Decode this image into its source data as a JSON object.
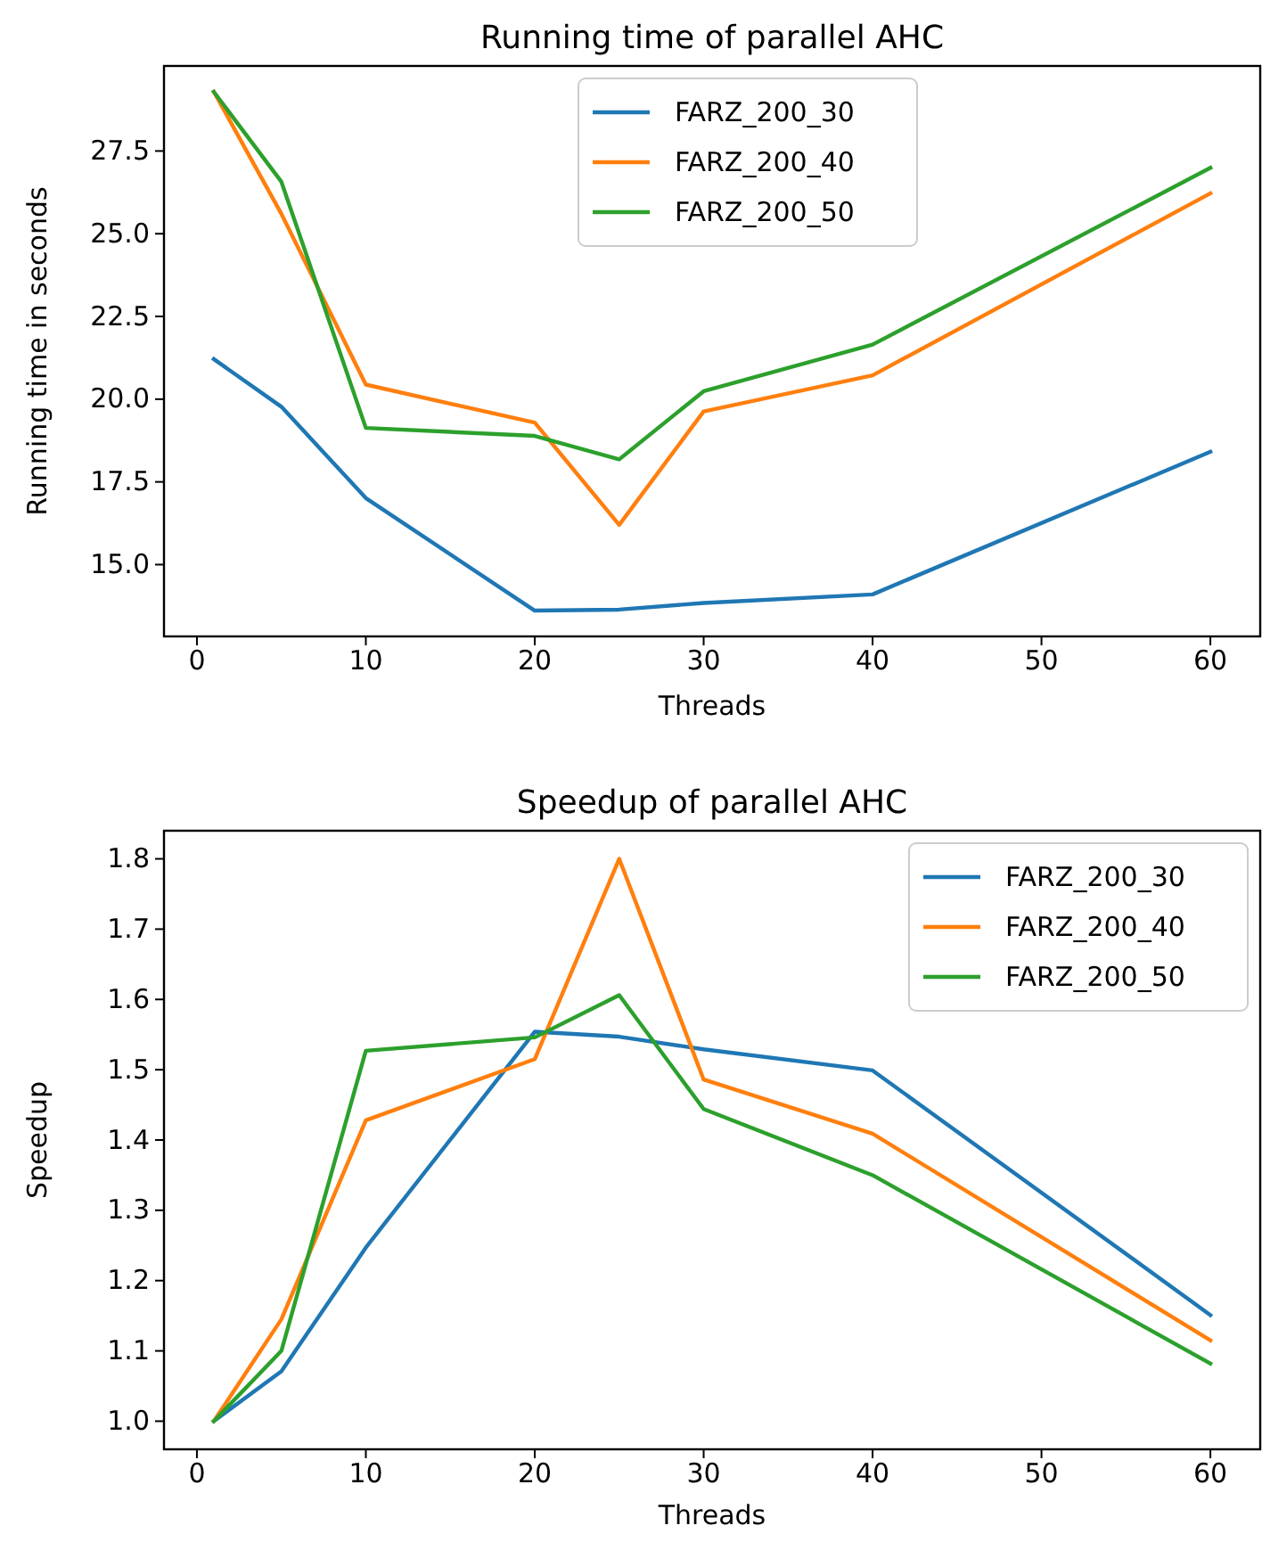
{
  "chart_data": [
    {
      "type": "line",
      "title": "Running time of parallel AHC",
      "xlabel": "Threads",
      "ylabel": "Running time in seconds",
      "x": [
        1,
        5,
        10,
        20,
        25,
        30,
        40,
        60
      ],
      "series": [
        {
          "name": "FARZ_200_30",
          "color": "#1f77b4",
          "values": [
            21.21,
            19.77,
            17.01,
            13.61,
            13.64,
            13.84,
            14.1,
            18.41
          ]
        },
        {
          "name": "FARZ_200_40",
          "color": "#ff7f0e",
          "values": [
            29.29,
            25.6,
            20.44,
            19.29,
            16.2,
            19.63,
            20.72,
            26.22
          ]
        },
        {
          "name": "FARZ_200_50",
          "color": "#2ca02c",
          "values": [
            29.29,
            26.57,
            19.13,
            18.89,
            18.18,
            20.24,
            21.65,
            26.99
          ]
        }
      ],
      "xlim": [
        -1.95,
        62.95
      ],
      "xticks": [
        0,
        10,
        20,
        30,
        40,
        50,
        60
      ],
      "ylim": [
        12.83,
        30.07
      ],
      "yticks": [
        {
          "value": 15,
          "label": "15.0"
        },
        17.5,
        {
          "value": 20,
          "label": "20.0"
        },
        22.5,
        {
          "value": 25,
          "label": "25.0"
        },
        27.5
      ],
      "legend": "top",
      "grid": false
    },
    {
      "type": "line",
      "title": "Speedup of parallel AHC",
      "xlabel": "Threads",
      "ylabel": "Speedup",
      "x": [
        1,
        5,
        10,
        20,
        25,
        30,
        40,
        60
      ],
      "series": [
        {
          "name": "FARZ_200_30",
          "color": "#1f77b4",
          "values": [
            1.0,
            1.071,
            1.247,
            1.554,
            1.547,
            1.529,
            1.499,
            1.151
          ]
        },
        {
          "name": "FARZ_200_40",
          "color": "#ff7f0e",
          "values": [
            1.0,
            1.145,
            1.428,
            1.515,
            1.8,
            1.486,
            1.409,
            1.115
          ]
        },
        {
          "name": "FARZ_200_50",
          "color": "#2ca02c",
          "values": [
            1.0,
            1.1,
            1.527,
            1.546,
            1.606,
            1.444,
            1.35,
            1.082
          ]
        }
      ],
      "xlim": [
        -1.95,
        62.95
      ],
      "xticks": [
        0,
        10,
        20,
        30,
        40,
        50,
        60
      ],
      "ylim": [
        0.96,
        1.84
      ],
      "yticks": [
        {
          "value": 1,
          "label": "1.0"
        },
        1.1,
        1.2,
        1.3,
        1.4,
        1.5,
        1.6,
        1.7,
        1.8
      ],
      "legend": "top right",
      "grid": false
    }
  ]
}
